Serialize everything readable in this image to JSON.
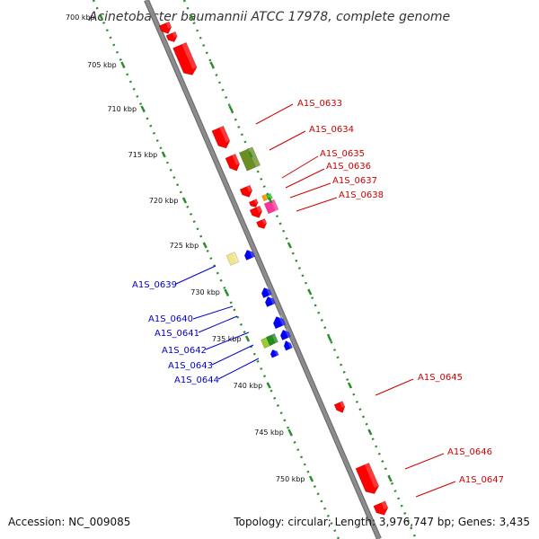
{
  "title": "Acinetobacter baumannii ATCC 17978, complete genome",
  "footer": {
    "accession": "Accession: NC_009085",
    "summary": "Topology: circular; Length: 3,976,747 bp; Genes: 3,435"
  },
  "colors": {
    "backbone": "#8c8c8c",
    "tick": "#2e8b2e",
    "forward_label": "#cc0000",
    "reverse_label": "#0000cc"
  },
  "ticks": [
    {
      "kbp": 700,
      "label": "700 kbp"
    },
    {
      "kbp": 705,
      "label": "705 kbp"
    },
    {
      "kbp": 710,
      "label": "710 kbp"
    },
    {
      "kbp": 715,
      "label": "715 kbp"
    },
    {
      "kbp": 720,
      "label": "720 kbp"
    },
    {
      "kbp": 725,
      "label": "725 kbp"
    },
    {
      "kbp": 730,
      "label": "730 kbp"
    },
    {
      "kbp": 735,
      "label": "735 kbp"
    },
    {
      "kbp": 740,
      "label": "740 kbp"
    },
    {
      "kbp": 745,
      "label": "745 kbp"
    },
    {
      "kbp": 750,
      "label": "750 kbp"
    }
  ],
  "gene_labels": [
    {
      "text": "A1S_0633",
      "strand": "forward"
    },
    {
      "text": "A1S_0634",
      "strand": "forward"
    },
    {
      "text": "A1S_0635",
      "strand": "forward"
    },
    {
      "text": "A1S_0636",
      "strand": "forward"
    },
    {
      "text": "A1S_0637",
      "strand": "forward"
    },
    {
      "text": "A1S_0638",
      "strand": "forward"
    },
    {
      "text": "A1S_0639",
      "strand": "reverse"
    },
    {
      "text": "A1S_0640",
      "strand": "reverse"
    },
    {
      "text": "A1S_0641",
      "strand": "reverse"
    },
    {
      "text": "A1S_0642",
      "strand": "reverse"
    },
    {
      "text": "A1S_0643",
      "strand": "reverse"
    },
    {
      "text": "A1S_0644",
      "strand": "reverse"
    },
    {
      "text": "A1S_0645",
      "strand": "forward"
    },
    {
      "text": "A1S_0646",
      "strand": "forward"
    },
    {
      "text": "A1S_0647",
      "strand": "forward"
    }
  ],
  "features": [
    {
      "color": "#ff0000"
    },
    {
      "color": "#ff0000"
    },
    {
      "color": "#ff0000"
    },
    {
      "color": "#ff0000"
    },
    {
      "color": "#6b8e23"
    },
    {
      "color": "#ff0000"
    },
    {
      "color": "#ff0000"
    },
    {
      "color": "#ff0000"
    },
    {
      "color": "#ff9900"
    },
    {
      "color": "#33cc33"
    },
    {
      "color": "#ff3399"
    },
    {
      "color": "#ff0000"
    },
    {
      "color": "#ff0000"
    },
    {
      "color": "#f0e68c"
    },
    {
      "color": "#0000ff"
    },
    {
      "color": "#0000ff"
    },
    {
      "color": "#0000ff"
    },
    {
      "color": "#0000ff"
    },
    {
      "color": "#0000ff"
    },
    {
      "color": "#0000ff"
    },
    {
      "color": "#99cc33"
    },
    {
      "color": "#228b22"
    },
    {
      "color": "#0000ff"
    },
    {
      "color": "#ff0000"
    },
    {
      "color": "#ff0000"
    },
    {
      "color": "#ff0000"
    }
  ]
}
